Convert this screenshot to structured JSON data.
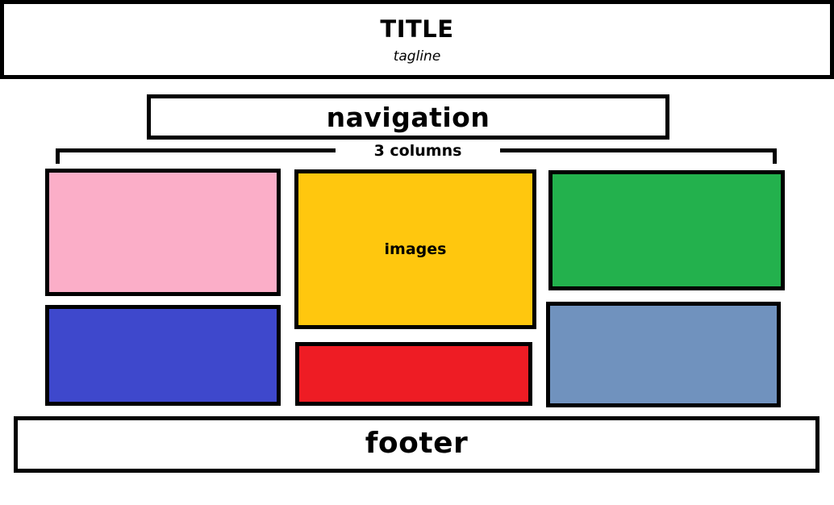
{
  "header": {
    "title": "TITLE",
    "tagline": "tagline"
  },
  "navigation": {
    "label": "navigation"
  },
  "columns": {
    "label": "3 columns"
  },
  "images": {
    "label": "images",
    "tiles": [
      {
        "color": "#fbaec8"
      },
      {
        "color": "#3e48cc"
      },
      {
        "color": "#ffc70e"
      },
      {
        "color": "#ee1c24"
      },
      {
        "color": "#23b14d"
      },
      {
        "color": "#7092be"
      }
    ]
  },
  "footer": {
    "label": "footer"
  }
}
